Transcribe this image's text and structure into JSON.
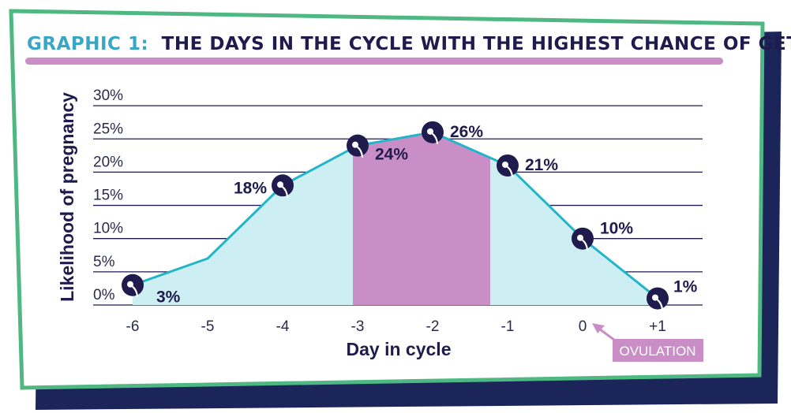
{
  "title_prefix": "GRAPHIC 1:",
  "title_main": "THE DAYS IN THE CYCLE WITH THE HIGHEST CHANCE OF GETTING PREGNANT",
  "annotation": "OVULATION",
  "colors": {
    "frame_border": "#4fb882",
    "shadow": "#1c2559",
    "title_prefix": "#3aa6c6",
    "title_main": "#1f1b4d",
    "title_underline": "#c98ec6",
    "line": "#22b5c8",
    "area": "#cdeff3",
    "peak_band": "#c98ec6",
    "marker": "#1f1b4d",
    "text": "#1f1b4d"
  },
  "chart_data": {
    "type": "area",
    "xlabel": "Day in cycle",
    "ylabel": "Likelihood of pregnancy",
    "x": [
      "-6",
      "-5",
      "-4",
      "-3",
      "-2",
      "-1",
      "0",
      "+1"
    ],
    "values": [
      3,
      7,
      18,
      24,
      26,
      21,
      10,
      1
    ],
    "labeled_points": [
      {
        "day": "-6",
        "value": 3,
        "label": "3%"
      },
      {
        "day": "-4",
        "value": 18,
        "label": "18%"
      },
      {
        "day": "-3",
        "value": 24,
        "label": "24%"
      },
      {
        "day": "-2",
        "value": 26,
        "label": "26%"
      },
      {
        "day": "-1",
        "value": 21,
        "label": "21%"
      },
      {
        "day": "0",
        "value": 10,
        "label": "10%"
      },
      {
        "day": "+1",
        "value": 1,
        "label": "1%"
      }
    ],
    "yticks": [
      "0%",
      "5%",
      "10%",
      "15%",
      "20%",
      "25%",
      "30%"
    ],
    "ylim": [
      0,
      30
    ],
    "highlight_range": [
      "-3",
      "-1"
    ],
    "grid": true
  }
}
